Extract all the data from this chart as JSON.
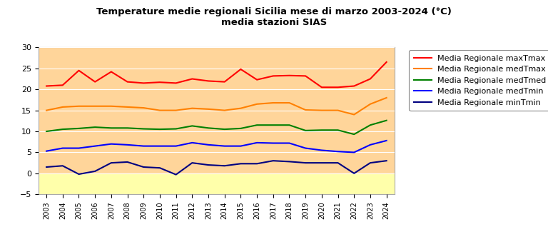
{
  "title_line1": "Temperature medie regionali Sicilia mese di marzo 2003-2024 (°C)",
  "title_line2": "media stazioni SIAS",
  "years": [
    2003,
    2004,
    2005,
    2006,
    2007,
    2008,
    2009,
    2010,
    2011,
    2012,
    2013,
    2014,
    2015,
    2016,
    2017,
    2018,
    2019,
    2020,
    2021,
    2022,
    2023,
    2024
  ],
  "maxTmax": [
    20.8,
    21.0,
    24.5,
    21.8,
    24.2,
    21.8,
    21.5,
    21.7,
    21.5,
    22.5,
    22.0,
    21.8,
    24.8,
    22.3,
    23.2,
    23.3,
    23.2,
    20.5,
    20.5,
    20.8,
    22.5,
    26.5
  ],
  "medTmax": [
    15.0,
    15.8,
    16.0,
    16.0,
    16.0,
    15.8,
    15.6,
    15.0,
    15.0,
    15.5,
    15.3,
    15.0,
    15.5,
    16.5,
    16.8,
    16.8,
    15.1,
    15.0,
    15.0,
    14.0,
    16.5,
    18.0
  ],
  "medTmed": [
    10.0,
    10.5,
    10.7,
    11.0,
    10.8,
    10.8,
    10.6,
    10.5,
    10.6,
    11.3,
    10.8,
    10.5,
    10.7,
    11.5,
    11.5,
    11.5,
    10.2,
    10.3,
    10.3,
    9.3,
    11.5,
    12.6
  ],
  "medTmin": [
    5.3,
    6.0,
    6.0,
    6.5,
    7.0,
    6.8,
    6.5,
    6.5,
    6.5,
    7.3,
    6.8,
    6.5,
    6.5,
    7.3,
    7.2,
    7.2,
    6.0,
    5.5,
    5.2,
    5.0,
    6.8,
    7.8
  ],
  "minTmin": [
    1.5,
    1.8,
    -0.2,
    0.5,
    2.5,
    2.7,
    1.5,
    1.3,
    -0.3,
    2.5,
    2.0,
    1.8,
    2.3,
    2.3,
    3.0,
    2.8,
    2.5,
    2.5,
    2.5,
    0.0,
    2.5,
    3.0
  ],
  "colors": {
    "maxTmax": "#ff0000",
    "medTmax": "#ff8000",
    "medTmed": "#008000",
    "medTmin": "#0000ff",
    "minTmin": "#000080"
  },
  "legend_labels": {
    "maxTmax": "Media Regionale maxTmax",
    "medTmax": "Media Regionale medTmax",
    "medTmed": "Media Regionale medTmed",
    "medTmin": "Media Regionale medTmin",
    "minTmin": "Media Regionale minTmin"
  },
  "ylim": [
    -5,
    30
  ],
  "yticks": [
    -5,
    0,
    5,
    10,
    15,
    20,
    25,
    30
  ],
  "bg_color_top": "#ffd59a",
  "bg_color_bottom": "#ffffaa",
  "bg_split_y": 0,
  "xlim_left": 2002.5,
  "xlim_right": 2024.5
}
